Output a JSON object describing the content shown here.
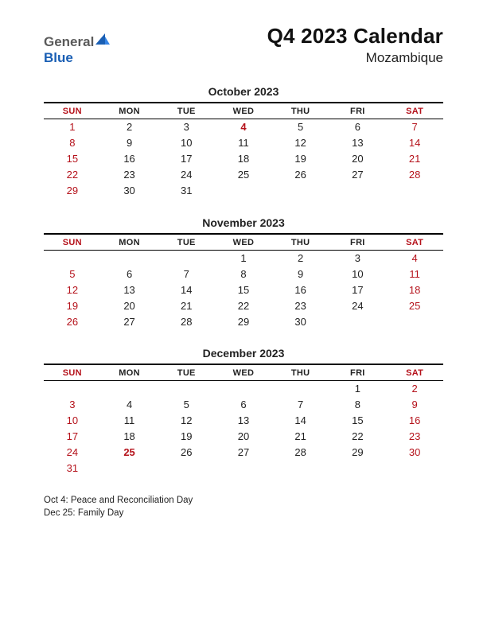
{
  "logo": {
    "general": "General",
    "blue": "Blue"
  },
  "title": "Q4 2023 Calendar",
  "subtitle": "Mozambique",
  "colors": {
    "weekend": "#b5121b",
    "text": "#222222",
    "logo_blue": "#1a5fb4",
    "logo_gray": "#5a5a5a",
    "border": "#000000",
    "background": "#ffffff"
  },
  "day_headers": [
    "SUN",
    "MON",
    "TUE",
    "WED",
    "THU",
    "FRI",
    "SAT"
  ],
  "months": [
    {
      "name": "October 2023",
      "weeks": [
        [
          {
            "d": "1",
            "w": true
          },
          {
            "d": "2"
          },
          {
            "d": "3"
          },
          {
            "d": "4",
            "h": true
          },
          {
            "d": "5"
          },
          {
            "d": "6"
          },
          {
            "d": "7",
            "w": true
          }
        ],
        [
          {
            "d": "8",
            "w": true
          },
          {
            "d": "9"
          },
          {
            "d": "10"
          },
          {
            "d": "11"
          },
          {
            "d": "12"
          },
          {
            "d": "13"
          },
          {
            "d": "14",
            "w": true
          }
        ],
        [
          {
            "d": "15",
            "w": true
          },
          {
            "d": "16"
          },
          {
            "d": "17"
          },
          {
            "d": "18"
          },
          {
            "d": "19"
          },
          {
            "d": "20"
          },
          {
            "d": "21",
            "w": true
          }
        ],
        [
          {
            "d": "22",
            "w": true
          },
          {
            "d": "23"
          },
          {
            "d": "24"
          },
          {
            "d": "25"
          },
          {
            "d": "26"
          },
          {
            "d": "27"
          },
          {
            "d": "28",
            "w": true
          }
        ],
        [
          {
            "d": "29",
            "w": true
          },
          {
            "d": "30"
          },
          {
            "d": "31"
          },
          {
            "d": ""
          },
          {
            "d": ""
          },
          {
            "d": ""
          },
          {
            "d": ""
          }
        ]
      ]
    },
    {
      "name": "November 2023",
      "weeks": [
        [
          {
            "d": ""
          },
          {
            "d": ""
          },
          {
            "d": ""
          },
          {
            "d": "1"
          },
          {
            "d": "2"
          },
          {
            "d": "3"
          },
          {
            "d": "4",
            "w": true
          }
        ],
        [
          {
            "d": "5",
            "w": true
          },
          {
            "d": "6"
          },
          {
            "d": "7"
          },
          {
            "d": "8"
          },
          {
            "d": "9"
          },
          {
            "d": "10"
          },
          {
            "d": "11",
            "w": true
          }
        ],
        [
          {
            "d": "12",
            "w": true
          },
          {
            "d": "13"
          },
          {
            "d": "14"
          },
          {
            "d": "15"
          },
          {
            "d": "16"
          },
          {
            "d": "17"
          },
          {
            "d": "18",
            "w": true
          }
        ],
        [
          {
            "d": "19",
            "w": true
          },
          {
            "d": "20"
          },
          {
            "d": "21"
          },
          {
            "d": "22"
          },
          {
            "d": "23"
          },
          {
            "d": "24"
          },
          {
            "d": "25",
            "w": true
          }
        ],
        [
          {
            "d": "26",
            "w": true
          },
          {
            "d": "27"
          },
          {
            "d": "28"
          },
          {
            "d": "29"
          },
          {
            "d": "30"
          },
          {
            "d": ""
          },
          {
            "d": ""
          }
        ]
      ]
    },
    {
      "name": "December 2023",
      "weeks": [
        [
          {
            "d": ""
          },
          {
            "d": ""
          },
          {
            "d": ""
          },
          {
            "d": ""
          },
          {
            "d": ""
          },
          {
            "d": "1"
          },
          {
            "d": "2",
            "w": true
          }
        ],
        [
          {
            "d": "3",
            "w": true
          },
          {
            "d": "4"
          },
          {
            "d": "5"
          },
          {
            "d": "6"
          },
          {
            "d": "7"
          },
          {
            "d": "8"
          },
          {
            "d": "9",
            "w": true
          }
        ],
        [
          {
            "d": "10",
            "w": true
          },
          {
            "d": "11"
          },
          {
            "d": "12"
          },
          {
            "d": "13"
          },
          {
            "d": "14"
          },
          {
            "d": "15"
          },
          {
            "d": "16",
            "w": true
          }
        ],
        [
          {
            "d": "17",
            "w": true
          },
          {
            "d": "18"
          },
          {
            "d": "19"
          },
          {
            "d": "20"
          },
          {
            "d": "21"
          },
          {
            "d": "22"
          },
          {
            "d": "23",
            "w": true
          }
        ],
        [
          {
            "d": "24",
            "w": true
          },
          {
            "d": "25",
            "h": true
          },
          {
            "d": "26"
          },
          {
            "d": "27"
          },
          {
            "d": "28"
          },
          {
            "d": "29"
          },
          {
            "d": "30",
            "w": true
          }
        ],
        [
          {
            "d": "31",
            "w": true
          },
          {
            "d": ""
          },
          {
            "d": ""
          },
          {
            "d": ""
          },
          {
            "d": ""
          },
          {
            "d": ""
          },
          {
            "d": ""
          }
        ]
      ]
    }
  ],
  "holidays": [
    "Oct 4: Peace and Reconciliation Day",
    "Dec 25: Family Day"
  ]
}
